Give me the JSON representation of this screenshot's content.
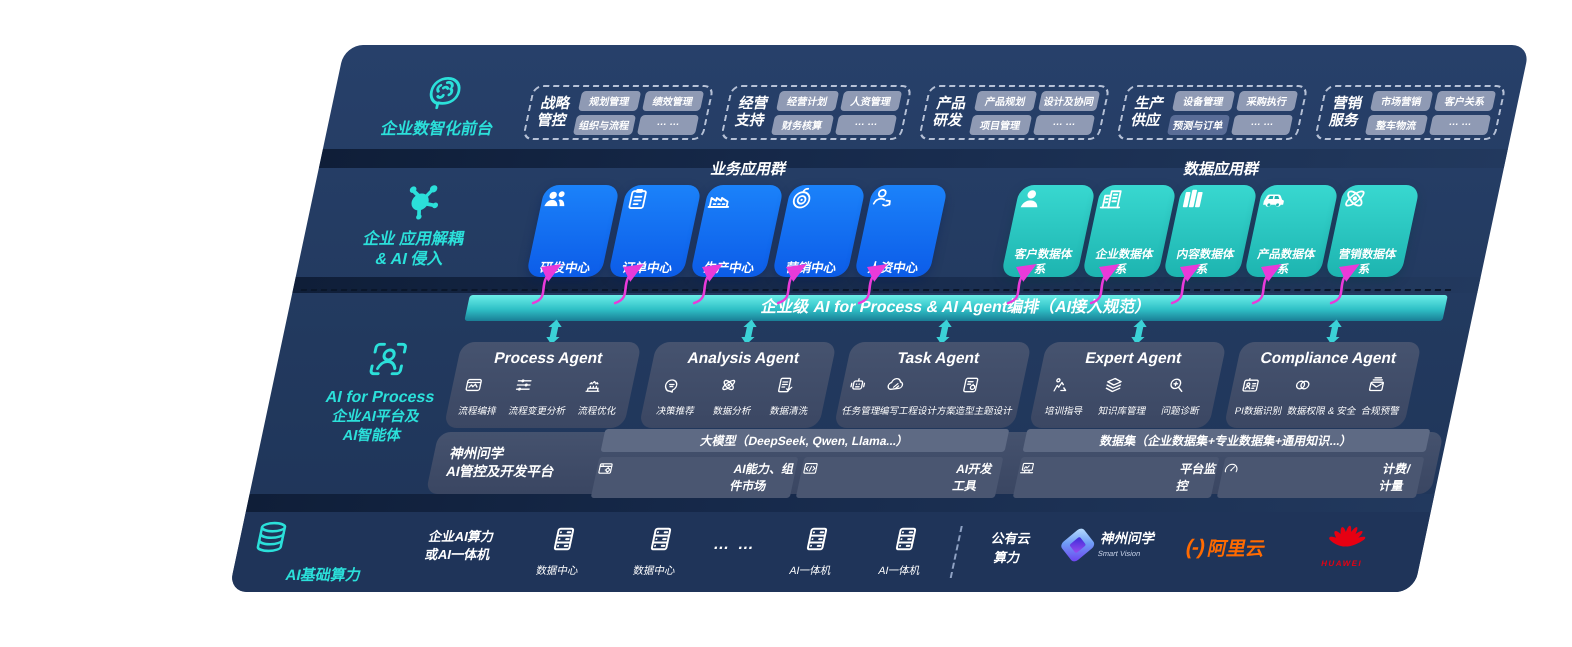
{
  "front_layer": {
    "label": "企业数智化前台",
    "icon": "brain-icon",
    "groups": [
      {
        "title": "战略管控",
        "chips": [
          "规划管理",
          "绩效管理",
          "组织与流程",
          "… …"
        ]
      },
      {
        "title": "经营支持",
        "chips": [
          "经营计划",
          "人资管理",
          "财务核算",
          "… …"
        ]
      },
      {
        "title": "产品研发",
        "chips": [
          "产品规划",
          "设计及协同",
          "项目管理",
          "… …"
        ]
      },
      {
        "title": "生产供应",
        "chips": [
          "设备管理",
          "采购执行",
          "预测与订单",
          "… …"
        ]
      },
      {
        "title": "营销服务",
        "chips": [
          "市场营销",
          "客户关系",
          "整车物流",
          "… …"
        ]
      }
    ]
  },
  "apps_layer": {
    "label_line1": "企业 应用解耦",
    "label_line2": "& AI 侵入",
    "icon": "molecule-icon",
    "business_header": "业务应用群",
    "data_header": "数据应用群",
    "business_apps": [
      {
        "label": "研发中心",
        "icon": "team-icon"
      },
      {
        "label": "订单中心",
        "icon": "clipboard-icon"
      },
      {
        "label": "生产中心",
        "icon": "factory-icon"
      },
      {
        "label": "营销中心",
        "icon": "target-icon"
      },
      {
        "label": "人资中心",
        "icon": "hr-icon"
      }
    ],
    "data_apps": [
      {
        "label": "客户数据体系",
        "icon": "user-icon"
      },
      {
        "label": "企业数据体系",
        "icon": "building-icon"
      },
      {
        "label": "内容数据体系",
        "icon": "content-icon"
      },
      {
        "label": "产品数据体系",
        "icon": "car-icon"
      },
      {
        "label": "营销数据体系",
        "icon": "atom-icon"
      }
    ]
  },
  "orchestration_bar": {
    "title": "企业级 AI for Process & AI Agent编排（AI接入规范）"
  },
  "platform_layer": {
    "label_title": "AI for Process",
    "label_line2": "企业AI平台及",
    "label_line3": "AI智能体",
    "icon": "person-scan-icon",
    "agents": [
      {
        "title": "Process Agent",
        "items": [
          {
            "label": "流程编排",
            "icon": "flow-monitor-icon"
          },
          {
            "label": "流程变更分析",
            "icon": "sliders-icon"
          },
          {
            "label": "流程优化",
            "icon": "optimize-icon"
          }
        ]
      },
      {
        "title": "Analysis Agent",
        "items": [
          {
            "label": "决策推荐",
            "icon": "chat-head-icon"
          },
          {
            "label": "数据分析",
            "icon": "data-analysis-icon"
          },
          {
            "label": "数据清洗",
            "icon": "doc-clean-icon"
          }
        ]
      },
      {
        "title": "Task Agent",
        "items": [
          {
            "label": "任务管理",
            "icon": "robot-icon"
          },
          {
            "label": "编写工程设计方案",
            "icon": "cloud-edit-icon"
          },
          {
            "label": "造型主题设计",
            "icon": "design-board-icon"
          }
        ]
      },
      {
        "title": "Expert Agent",
        "items": [
          {
            "label": "培训指导",
            "icon": "mentor-icon"
          },
          {
            "label": "知识库管理",
            "icon": "layers-icon"
          },
          {
            "label": "问题诊断",
            "icon": "diagnose-icon"
          }
        ]
      },
      {
        "title": "Compliance Agent",
        "items": [
          {
            "label": "PI数据识别",
            "icon": "id-card-icon"
          },
          {
            "label": "数据权限 & 安全",
            "icon": "link-rings-icon"
          },
          {
            "label": "合规预警",
            "icon": "alert-mail-icon"
          }
        ]
      }
    ],
    "dev_platform": {
      "label_line1": "神州问学",
      "label_line2": "AI管控及开发平台",
      "model_band": "大模型（DeepSeek, Qwen, Llama...）",
      "left_chips": [
        {
          "label": "AI能力、组件市场",
          "icon": "component-market-icon"
        },
        {
          "label": "AI开发工具",
          "icon": "devtools-icon"
        }
      ],
      "data_band": "数据集（企业数据集+专业数据集+通用知识...）",
      "right_chips": [
        {
          "label": "平台监控",
          "icon": "monitor-icon"
        },
        {
          "label": "计费/计量",
          "icon": "gauge-icon"
        }
      ]
    }
  },
  "compute_layer": {
    "label": "AI基础算力",
    "icon": "database-icon",
    "enterprise_line1": "企业AI算力",
    "enterprise_line2": "或AI一体机",
    "nodes": [
      {
        "label": "数据中心",
        "icon": "server-icon"
      },
      {
        "label": "数据中心",
        "icon": "server-icon"
      },
      {
        "label": "AI一体机",
        "icon": "server-icon"
      },
      {
        "label": "AI一体机",
        "icon": "server-icon"
      }
    ],
    "dots": "… …",
    "public_line1": "公有云",
    "public_line2": "算力",
    "vendors": {
      "szwx": {
        "name": "神州问学",
        "sub": "Smart Vision"
      },
      "ali": {
        "prefix": "(-)",
        "name": "阿里云"
      },
      "huawei": {
        "name": "HUAWEI"
      }
    }
  },
  "colors": {
    "accent_teal": "#2BE0DA",
    "app_blue": "#1374F2",
    "data_teal": "#2CCFC8",
    "magenta": "#E93AD9",
    "ali_orange": "#FF6A00",
    "huawei_red": "#E60012"
  }
}
